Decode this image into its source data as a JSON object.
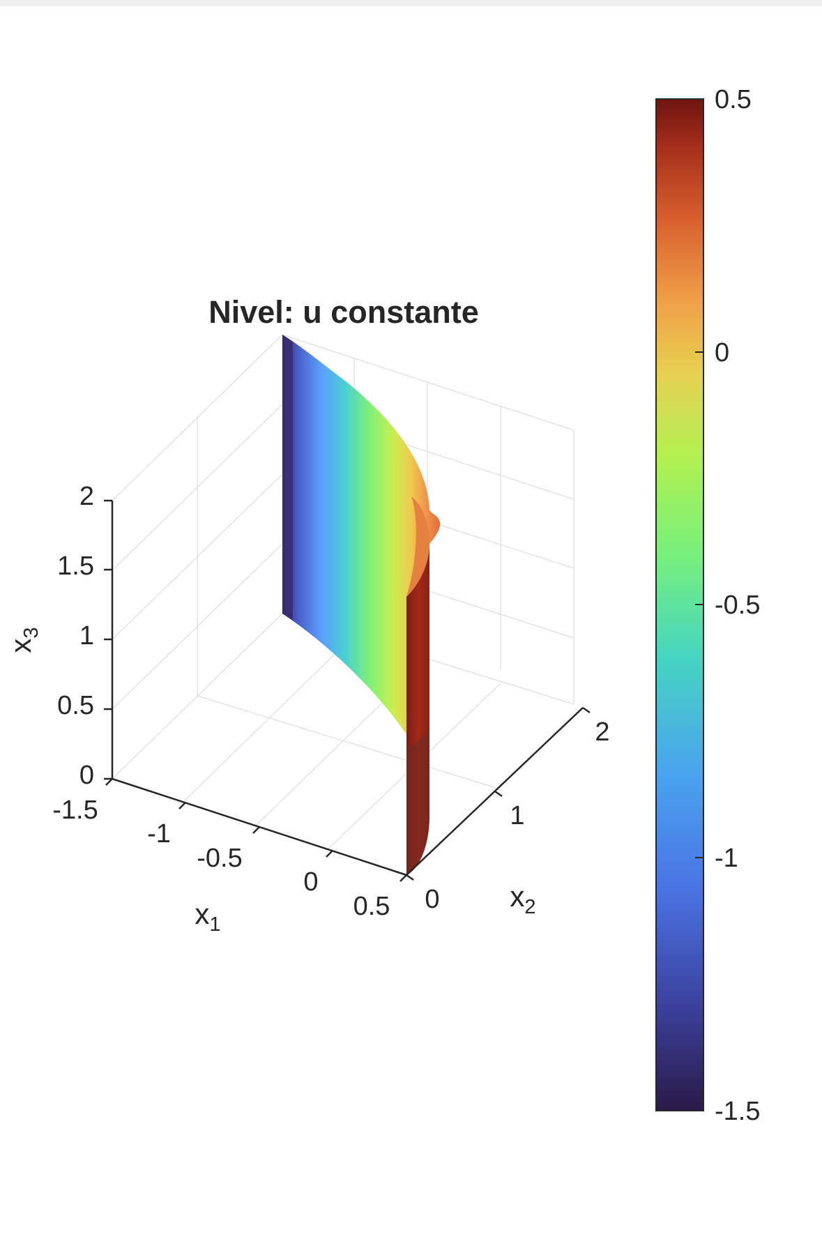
{
  "chart_data": {
    "type": "surface",
    "title": "Nivel: u constante",
    "view": "3d",
    "axes": {
      "x1": {
        "label": "x",
        "subscript": "1",
        "lim": [
          -1.5,
          0.5
        ],
        "ticks": [
          "-1.5",
          "-1",
          "-0.5",
          "0",
          "0.5"
        ]
      },
      "x2": {
        "label": "x",
        "subscript": "2",
        "lim": [
          0,
          2
        ],
        "ticks": [
          "0",
          "1",
          "2"
        ]
      },
      "x3": {
        "label": "x",
        "subscript": "3",
        "lim": [
          0,
          2
        ],
        "ticks": [
          "0",
          "0.5",
          "1",
          "1.5",
          "2"
        ]
      }
    },
    "grid": true,
    "surface": {
      "description_values": "level surface of constant u, colored by x1",
      "x1_range": [
        -1.5,
        0.5
      ],
      "x2_range": [
        0,
        2
      ],
      "x3_range": [
        0,
        2
      ]
    },
    "colorbar": {
      "colormap": "turbo",
      "lim": [
        -1.5,
        0.5
      ],
      "ticks": [
        "0.5",
        "0",
        "-0.5",
        "-1",
        "-1.5"
      ],
      "colors": [
        "#30123b",
        "#4662d7",
        "#36aaf9",
        "#1ae4b6",
        "#72fe5e",
        "#c8ef34",
        "#faba39",
        "#f66b19",
        "#ca2a04",
        "#7a0403"
      ]
    }
  }
}
